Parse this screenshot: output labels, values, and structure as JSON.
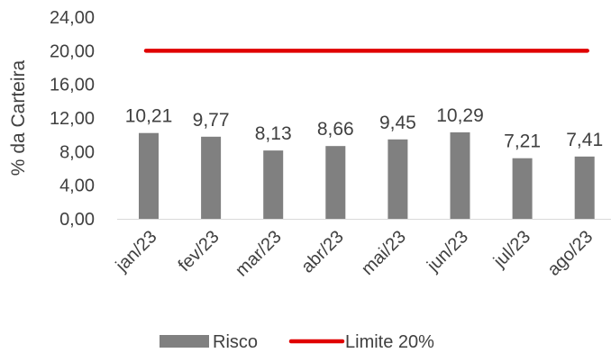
{
  "chart_data": {
    "type": "bar",
    "ylabel": "% da Carteira",
    "ylim": [
      0,
      24
    ],
    "yticks": [
      "0,00",
      "4,00",
      "8,00",
      "12,00",
      "16,00",
      "20,00",
      "24,00"
    ],
    "categories": [
      "jan/23",
      "fev/23",
      "mar/23",
      "abr/23",
      "mai/23",
      "jun/23",
      "jul/23",
      "ago/23"
    ],
    "series": [
      {
        "name": "Risco",
        "type": "bar",
        "color": "#808080",
        "values": [
          10.21,
          9.77,
          8.13,
          8.66,
          9.45,
          10.29,
          7.21,
          7.41
        ],
        "labels": [
          "10,21",
          "9,77",
          "8,13",
          "8,66",
          "9,45",
          "10,29",
          "7,21",
          "7,41"
        ]
      },
      {
        "name": "Limite 20%",
        "type": "line",
        "color": "#e00000",
        "values": [
          20,
          20,
          20,
          20,
          20,
          20,
          20,
          20
        ]
      }
    ],
    "grid": false,
    "legend_position": "bottom"
  }
}
